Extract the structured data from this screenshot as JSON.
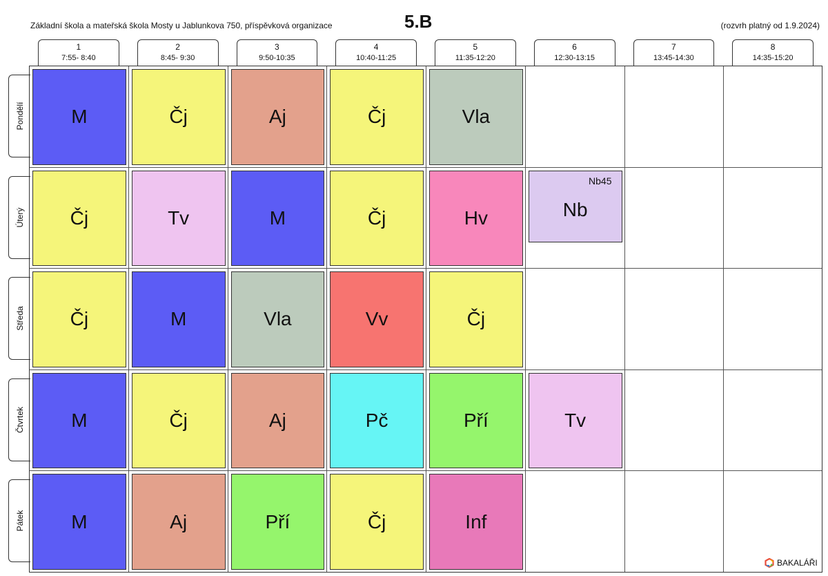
{
  "header": {
    "school": "Základní škola a mateřská škola Mosty u Jablunkova 750, příspěvková organizace",
    "class": "5.B",
    "valid_from": "(rozvrh platný od 1.9.2024)"
  },
  "periods": [
    {
      "num": "1",
      "time": "7:55- 8:40"
    },
    {
      "num": "2",
      "time": "8:45- 9:30"
    },
    {
      "num": "3",
      "time": "9:50-10:35"
    },
    {
      "num": "4",
      "time": "10:40-11:25"
    },
    {
      "num": "5",
      "time": "11:35-12:20"
    },
    {
      "num": "6",
      "time": "12:30-13:15"
    },
    {
      "num": "7",
      "time": "13:45-14:30"
    },
    {
      "num": "8",
      "time": "14:35-15:20"
    }
  ],
  "days": [
    "Pondělí",
    "Úterý",
    "Středa",
    "Čtvrtek",
    "Pátek"
  ],
  "colors": {
    "M": "#5c5cf5",
    "Čj": "#f5f57a",
    "Aj": "#e3a18c",
    "Vla": "#bccbbc",
    "Tv": "#efc4f0",
    "Hv": "#f887bb",
    "Nb": "#dccaf0",
    "Vv": "#f77470",
    "Pč": "#66f5f5",
    "Pří": "#95f56c",
    "Inf": "#e879b9"
  },
  "lessons": [
    {
      "day": 0,
      "period": 0,
      "subject": "M"
    },
    {
      "day": 0,
      "period": 1,
      "subject": "Čj"
    },
    {
      "day": 0,
      "period": 2,
      "subject": "Aj"
    },
    {
      "day": 0,
      "period": 3,
      "subject": "Čj"
    },
    {
      "day": 0,
      "period": 4,
      "subject": "Vla"
    },
    {
      "day": 1,
      "period": 0,
      "subject": "Čj"
    },
    {
      "day": 1,
      "period": 1,
      "subject": "Tv"
    },
    {
      "day": 1,
      "period": 2,
      "subject": "M"
    },
    {
      "day": 1,
      "period": 3,
      "subject": "Čj"
    },
    {
      "day": 1,
      "period": 4,
      "subject": "Hv"
    },
    {
      "day": 1,
      "period": 5,
      "subject": "Nb",
      "room": "Nb45",
      "half": true
    },
    {
      "day": 2,
      "period": 0,
      "subject": "Čj"
    },
    {
      "day": 2,
      "period": 1,
      "subject": "M"
    },
    {
      "day": 2,
      "period": 2,
      "subject": "Vla"
    },
    {
      "day": 2,
      "period": 3,
      "subject": "Vv"
    },
    {
      "day": 2,
      "period": 4,
      "subject": "Čj"
    },
    {
      "day": 3,
      "period": 0,
      "subject": "M"
    },
    {
      "day": 3,
      "period": 1,
      "subject": "Čj"
    },
    {
      "day": 3,
      "period": 2,
      "subject": "Aj"
    },
    {
      "day": 3,
      "period": 3,
      "subject": "Pč"
    },
    {
      "day": 3,
      "period": 4,
      "subject": "Pří"
    },
    {
      "day": 3,
      "period": 5,
      "subject": "Tv"
    },
    {
      "day": 4,
      "period": 0,
      "subject": "M"
    },
    {
      "day": 4,
      "period": 1,
      "subject": "Aj"
    },
    {
      "day": 4,
      "period": 2,
      "subject": "Pří"
    },
    {
      "day": 4,
      "period": 3,
      "subject": "Čj"
    },
    {
      "day": 4,
      "period": 4,
      "subject": "Inf"
    }
  ],
  "logo": {
    "text": "BAKALÁŘI",
    "icon": "bakalari-logo-icon"
  }
}
